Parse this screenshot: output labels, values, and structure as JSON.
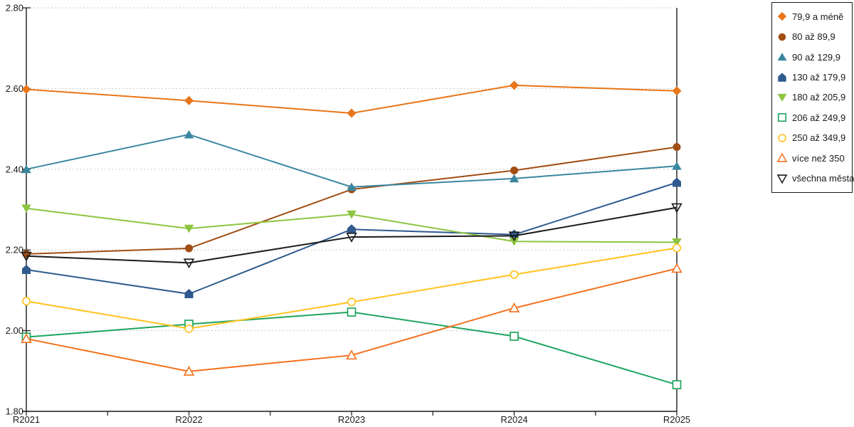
{
  "page": {
    "background": "#ffffff",
    "title": ""
  },
  "chart_data": {
    "type": "line",
    "title": "",
    "xlabel": "",
    "ylabel": "",
    "categories": [
      "R2021",
      "R2022",
      "R2023",
      "R2024",
      "R2025"
    ],
    "series": [
      {
        "name": "79,9 a méně",
        "color": "#E8761A",
        "marker": "diamond",
        "values": [
          2.598,
          2.57,
          2.539,
          2.608,
          2.594
        ]
      },
      {
        "name": "80 až 89,9",
        "color": "#A14E14",
        "marker": "circle",
        "values": [
          2.19,
          2.204,
          2.35,
          2.397,
          2.455
        ]
      },
      {
        "name": "90 až 129,9",
        "color": "#3A87A0",
        "marker": "triangle-up",
        "values": [
          2.4,
          2.486,
          2.356,
          2.377,
          2.408
        ]
      },
      {
        "name": "130 až 179,9",
        "color": "#2F5A8E",
        "marker": "pentagon",
        "values": [
          2.151,
          2.091,
          2.251,
          2.238,
          2.367
        ]
      },
      {
        "name": "180 až 205,9",
        "color": "#8CC540",
        "marker": "triangle-down",
        "values": [
          2.303,
          2.253,
          2.288,
          2.221,
          2.219
        ]
      },
      {
        "name": "206 až 249,9",
        "color": "#1EA55F",
        "marker": "square-open",
        "values": [
          1.984,
          2.016,
          2.046,
          1.986,
          1.866
        ]
      },
      {
        "name": "250 až 349,9",
        "color": "#FFC320",
        "marker": "circle-open",
        "values": [
          2.073,
          2.005,
          2.071,
          2.139,
          2.205
        ]
      },
      {
        "name": "více než 350",
        "color": "#F4701E",
        "marker": "triangle-up-open",
        "values": [
          1.98,
          1.899,
          1.939,
          2.056,
          2.154
        ]
      },
      {
        "name": "všechna města",
        "color": "#1A1A1A",
        "marker": "triangle-down-open",
        "values": [
          2.185,
          2.168,
          2.232,
          2.235,
          2.305
        ]
      }
    ],
    "y_axis": {
      "min": 1.8,
      "max": 2.8,
      "step": 0.2,
      "tick_values": [
        2.8,
        2.6,
        2.4,
        2.2,
        2.0,
        1.8
      ],
      "tick_labels": [
        "2.80",
        "2.60",
        "2.40",
        "2.20",
        "2.00",
        "1.80"
      ]
    },
    "x_axis": {
      "tick_labels": [
        "R2021",
        "R2022",
        "R2023",
        "R2024",
        "R2025"
      ],
      "minor_ticks_between_labels": true
    },
    "grid": {
      "show": true,
      "color": "#c9c9c9",
      "style": "dashed"
    },
    "axis_color": "#1a1a1a",
    "legend": {
      "position": "top-right",
      "border_color": "#1a1a1a",
      "background": "#ffffff"
    }
  }
}
